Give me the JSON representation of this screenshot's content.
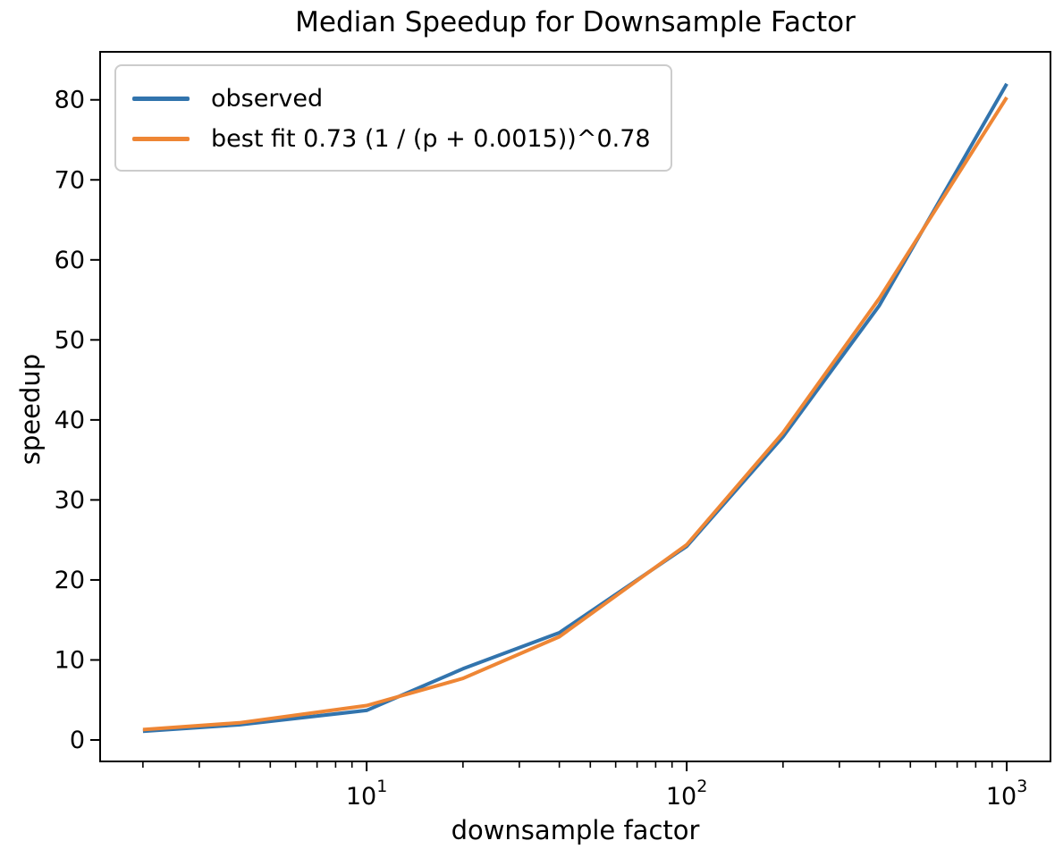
{
  "chart_data": {
    "type": "line",
    "title": "Median Speedup for Downsample Factor",
    "xlabel": "downsample factor",
    "ylabel": "speedup",
    "x_scale": "log",
    "grid": false,
    "legend_position": "upper left",
    "x": [
      2,
      4,
      10,
      20,
      40,
      100,
      200,
      400,
      1000
    ],
    "series": [
      {
        "name": "observed",
        "color": "#3274ad",
        "values": [
          1.1,
          1.9,
          3.7,
          8.9,
          13.4,
          24.2,
          37.9,
          54.3,
          82.0
        ]
      },
      {
        "name": "best fit 0.73 (1 / (p + 0.0015))^0.78",
        "color": "#ee8635",
        "values": [
          1.3,
          2.15,
          4.3,
          7.7,
          12.9,
          24.4,
          38.4,
          55.2,
          80.3
        ]
      }
    ],
    "y_ticks": [
      0,
      10,
      20,
      30,
      40,
      50,
      60,
      70,
      80
    ],
    "x_ticks": [
      {
        "value": 10,
        "label_base": "10",
        "label_exp": "1"
      },
      {
        "value": 100,
        "label_base": "10",
        "label_exp": "2"
      },
      {
        "value": 1000,
        "label_base": "10",
        "label_exp": "3"
      }
    ],
    "x_minor_ticks_per_decade": [
      2,
      3,
      4,
      5,
      6,
      7,
      8,
      9
    ],
    "x_range": [
      1.47,
      1370
    ],
    "y_range": [
      -2.68,
      86.0
    ]
  },
  "legend": {
    "items": [
      {
        "label": "observed",
        "color": "#3274ad"
      },
      {
        "label": "best fit 0.73 (1 / (p + 0.0015))^0.78",
        "color": "#ee8635"
      }
    ]
  },
  "colors": {
    "observed_line": "#3274ad",
    "best_fit_line": "#ee8635",
    "axis": "#000000",
    "legend_border": "#cccccc",
    "background": "#ffffff"
  }
}
